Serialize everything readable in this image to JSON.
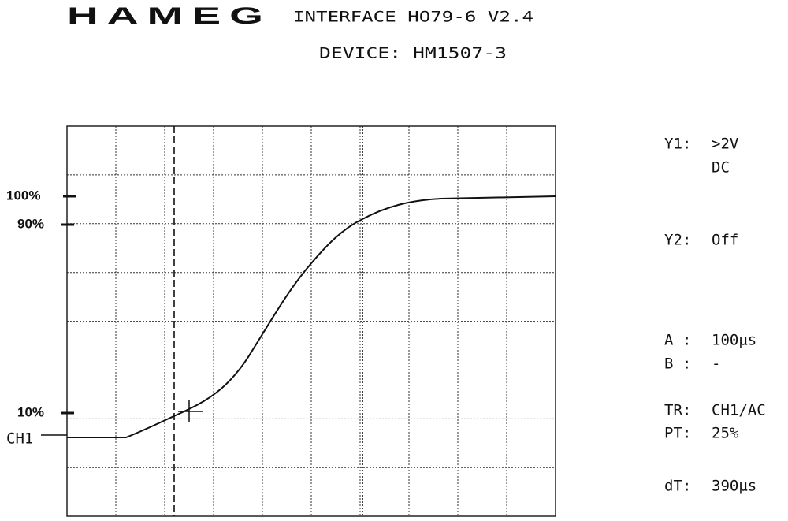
{
  "header": {
    "logo": "HAMEG",
    "interface": "INTERFACE HO79-6 V2.4",
    "device": "DEVICE: HM1507-3"
  },
  "scale_labels": [
    "100%",
    "90%",
    "10%"
  ],
  "channel_label": "CH1",
  "readouts": [
    {
      "label": "Y1:",
      "value": ">2V"
    },
    {
      "label": "",
      "value": "DC"
    },
    {
      "label": "Y2:",
      "value": "Off"
    },
    {
      "label": "A :",
      "value": "100µs"
    },
    {
      "label": "B :",
      "value": "-"
    },
    {
      "label": "TR:",
      "value": "CH1/AC"
    },
    {
      "label": "PT:",
      "value": "25%"
    },
    {
      "label": "dT:",
      "value": "390µs"
    }
  ]
}
